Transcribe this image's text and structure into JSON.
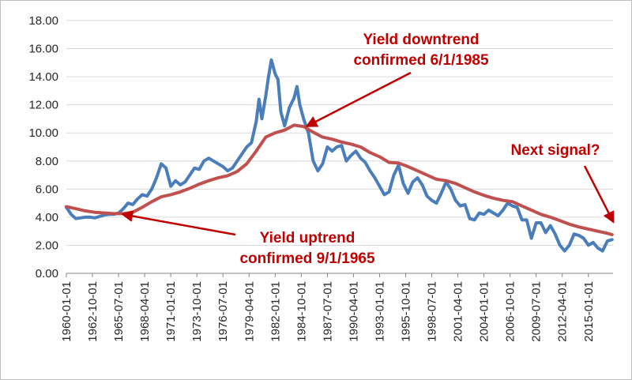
{
  "chart_data": {
    "type": "line",
    "ylim": [
      0,
      18
    ],
    "y_ticks": [
      "0.00",
      "2.00",
      "4.00",
      "6.00",
      "8.00",
      "10.00",
      "12.00",
      "14.00",
      "16.00",
      "18.00"
    ],
    "x_ticks": [
      "1960-01-01",
      "1962-10-01",
      "1965-07-01",
      "1968-04-01",
      "1971-01-01",
      "1973-10-01",
      "1976-07-01",
      "1979-04-01",
      "1982-01-01",
      "1984-10-01",
      "1987-07-01",
      "1990-04-01",
      "1993-01-01",
      "1995-10-01",
      "1998-07-01",
      "2001-04-01",
      "2004-01-01",
      "2006-10-01",
      "2009-07-01",
      "2012-04-01",
      "2015-01-01"
    ],
    "xlim": [
      1960.0,
      2017.6
    ],
    "grid": true,
    "series": [
      {
        "color": "#4a7ebb",
        "x": [
          1960.0,
          1960.5,
          1961.0,
          1961.5,
          1962.0,
          1962.5,
          1963.0,
          1963.5,
          1964.0,
          1964.5,
          1965.0,
          1965.5,
          1966.0,
          1966.5,
          1967.0,
          1967.5,
          1968.0,
          1968.5,
          1969.0,
          1969.5,
          1970.0,
          1970.5,
          1971.0,
          1971.5,
          1972.0,
          1972.5,
          1973.0,
          1973.5,
          1974.0,
          1974.5,
          1975.0,
          1975.5,
          1976.0,
          1976.5,
          1977.0,
          1977.5,
          1978.0,
          1978.5,
          1979.0,
          1979.5,
          1980.0,
          1980.3,
          1980.6,
          1981.0,
          1981.3,
          1981.6,
          1982.0,
          1982.3,
          1982.6,
          1983.0,
          1983.5,
          1984.0,
          1984.3,
          1984.6,
          1985.0,
          1985.5,
          1986.0,
          1986.5,
          1987.0,
          1987.5,
          1988.0,
          1988.5,
          1989.0,
          1989.5,
          1990.0,
          1990.5,
          1991.0,
          1991.5,
          1992.0,
          1992.5,
          1993.0,
          1993.5,
          1994.0,
          1994.5,
          1995.0,
          1995.5,
          1996.0,
          1996.5,
          1997.0,
          1997.5,
          1998.0,
          1998.5,
          1999.0,
          1999.5,
          2000.0,
          2000.5,
          2001.0,
          2001.5,
          2002.0,
          2002.5,
          2003.0,
          2003.5,
          2004.0,
          2004.5,
          2005.0,
          2005.5,
          2006.0,
          2006.5,
          2007.0,
          2007.5,
          2008.0,
          2008.5,
          2009.0,
          2009.5,
          2010.0,
          2010.5,
          2011.0,
          2011.5,
          2012.0,
          2012.5,
          2013.0,
          2013.5,
          2014.0,
          2014.5,
          2015.0,
          2015.5,
          2016.0,
          2016.5,
          2017.0,
          2017.5
        ],
        "values": [
          4.7,
          4.2,
          3.9,
          3.95,
          4.0,
          4.0,
          3.95,
          4.05,
          4.15,
          4.2,
          4.2,
          4.3,
          4.6,
          5.0,
          4.9,
          5.3,
          5.6,
          5.5,
          6.0,
          6.8,
          7.8,
          7.5,
          6.2,
          6.6,
          6.3,
          6.5,
          7.0,
          7.5,
          7.4,
          8.0,
          8.2,
          8.0,
          7.8,
          7.6,
          7.3,
          7.5,
          8.0,
          8.5,
          9.0,
          9.3,
          10.8,
          12.4,
          11.0,
          12.6,
          14.0,
          15.2,
          14.2,
          13.8,
          11.5,
          10.5,
          11.8,
          12.5,
          13.3,
          12.0,
          11.0,
          10.0,
          8.0,
          7.3,
          7.8,
          9.0,
          8.7,
          9.0,
          9.1,
          8.0,
          8.4,
          8.7,
          8.2,
          7.9,
          7.3,
          6.8,
          6.2,
          5.6,
          5.8,
          7.0,
          7.7,
          6.4,
          5.7,
          6.5,
          6.8,
          6.3,
          5.5,
          5.2,
          5.0,
          5.7,
          6.5,
          6.0,
          5.2,
          4.8,
          4.9,
          3.9,
          3.8,
          4.3,
          4.2,
          4.5,
          4.3,
          4.1,
          4.5,
          5.0,
          4.8,
          4.7,
          3.8,
          3.8,
          2.5,
          3.6,
          3.6,
          2.9,
          3.4,
          2.8,
          2.0,
          1.6,
          2.0,
          2.8,
          2.7,
          2.5,
          2.0,
          2.2,
          1.8,
          1.6,
          2.3,
          2.4
        ]
      },
      {
        "color": "#c0504d",
        "x": [
          1960.0,
          1961.0,
          1962.0,
          1963.0,
          1964.0,
          1965.0,
          1966.0,
          1967.0,
          1968.0,
          1969.0,
          1970.0,
          1971.0,
          1972.0,
          1973.0,
          1974.0,
          1975.0,
          1976.0,
          1977.0,
          1978.0,
          1979.0,
          1980.0,
          1981.0,
          1982.0,
          1983.0,
          1984.0,
          1985.0,
          1986.0,
          1987.0,
          1988.0,
          1989.0,
          1990.0,
          1991.0,
          1992.0,
          1993.0,
          1994.0,
          1995.0,
          1996.0,
          1997.0,
          1998.0,
          1999.0,
          2000.0,
          2001.0,
          2002.0,
          2003.0,
          2004.0,
          2005.0,
          2006.0,
          2007.0,
          2008.0,
          2009.0,
          2010.0,
          2011.0,
          2012.0,
          2013.0,
          2014.0,
          2015.0,
          2016.0,
          2017.0,
          2017.5
        ],
        "values": [
          4.75,
          4.6,
          4.45,
          4.35,
          4.3,
          4.25,
          4.25,
          4.35,
          4.7,
          5.1,
          5.45,
          5.6,
          5.8,
          6.05,
          6.35,
          6.6,
          6.8,
          6.95,
          7.25,
          7.8,
          8.7,
          9.7,
          10.0,
          10.2,
          10.55,
          10.45,
          10.05,
          9.7,
          9.55,
          9.35,
          9.2,
          9.0,
          8.6,
          8.3,
          7.9,
          7.85,
          7.6,
          7.3,
          7.0,
          6.7,
          6.6,
          6.4,
          6.1,
          5.8,
          5.55,
          5.35,
          5.2,
          5.1,
          4.8,
          4.5,
          4.2,
          4.0,
          3.75,
          3.5,
          3.3,
          3.15,
          3.0,
          2.85,
          2.75
        ]
      }
    ],
    "annotations": [
      {
        "lines": [
          "Yield downtrend",
          "confirmed 6/1/1985"
        ],
        "x": 1985.4,
        "y": 10.5
      },
      {
        "lines": [
          "Yield uptrend",
          "confirmed 9/1/1965"
        ],
        "x": 1966.0,
        "y": 4.2
      },
      {
        "lines": [
          "Next signal?"
        ],
        "x": 2017.6,
        "y": 3.7
      }
    ]
  }
}
